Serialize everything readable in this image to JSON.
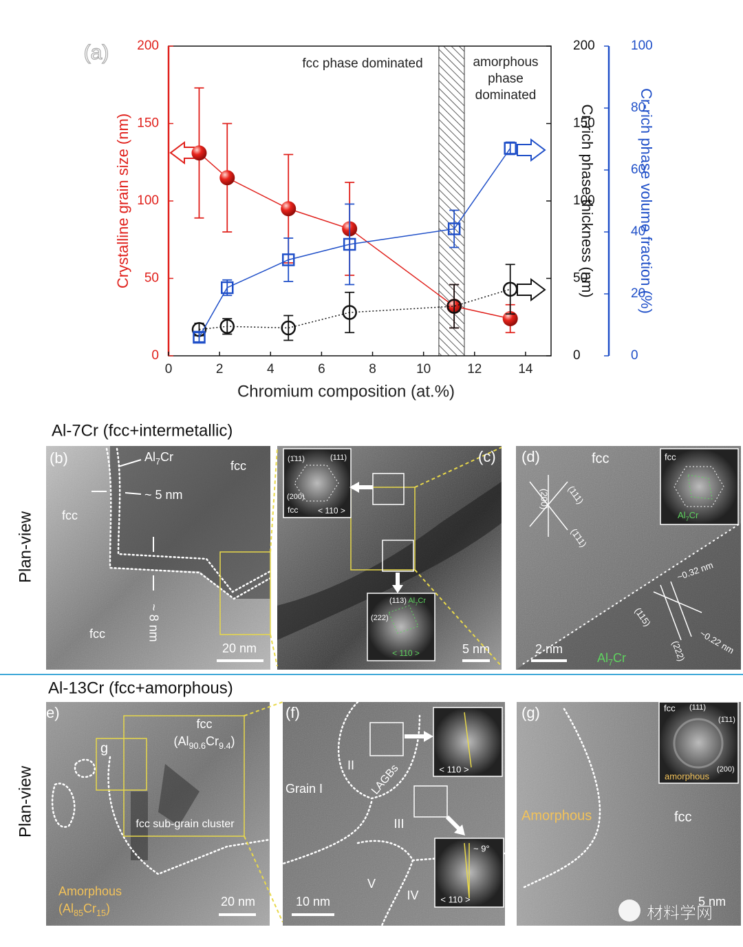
{
  "chart_data": {
    "type": "errorbar_line",
    "panel_label": "(a)",
    "x_label": "Chromium composition (at.%)",
    "y_label": "Crystalline grain size (nm)",
    "y2_label": "Cr-rich phase thickness (nm)",
    "y3_label": "Cr-rich phase volume fraction (%)",
    "y_color": "#e0201b",
    "y2_color": "#111111",
    "y3_color": "#1f4fc8",
    "xlim": [
      0,
      15
    ],
    "xticks": [
      0,
      2,
      4,
      6,
      8,
      10,
      12,
      14
    ],
    "ylim": [
      0,
      200
    ],
    "yticks": [
      0,
      50,
      100,
      150,
      200
    ],
    "y2lim": [
      0,
      200
    ],
    "y2ticks": [
      0,
      50,
      100,
      150,
      200
    ],
    "y3lim": [
      0,
      100
    ],
    "y3ticks": [
      0,
      20,
      40,
      60,
      80,
      100
    ],
    "shaded_region": [
      10.6,
      11.6
    ],
    "annotation_left": "fcc phase dominated",
    "annotation_right": [
      "amorphous",
      "phase",
      "dominated"
    ],
    "series": [
      {
        "axis": "y",
        "color": "#e0201b",
        "marker": "sphere",
        "line_style": "solid",
        "x": [
          1.2,
          2.3,
          4.7,
          7.1,
          11.2,
          13.4
        ],
        "values": [
          131,
          115,
          95,
          82,
          32,
          24
        ],
        "errors": [
          42,
          35,
          35,
          30,
          14,
          9
        ]
      },
      {
        "axis": "y2",
        "color": "#111111",
        "marker": "open-circle",
        "line_style": "dotted",
        "x": [
          1.2,
          2.3,
          4.7,
          7.1,
          11.2,
          13.4
        ],
        "values": [
          17,
          19,
          18,
          28,
          32,
          43
        ],
        "errors": [
          4,
          5,
          8,
          13,
          14,
          16
        ]
      },
      {
        "axis": "y3",
        "color": "#1f4fc8",
        "marker": "open-square",
        "line_style": "solid",
        "x": [
          1.2,
          2.3,
          4.7,
          7.1,
          11.2,
          13.4
        ],
        "values": [
          6,
          22,
          31,
          36,
          41,
          67
        ],
        "errors": [
          1.5,
          2.5,
          7,
          13,
          6,
          2
        ]
      }
    ]
  },
  "figure": {
    "row1_title": "Al-7Cr (fcc+intermetallic)",
    "row1_side": "Plan-view",
    "row2_title": "Al-13Cr (fcc+amorphous)",
    "row2_side": "Plan-view",
    "b": {
      "label": "(b)",
      "phase_label": [
        "Al",
        "7",
        "Cr"
      ],
      "thickness_top": "~ 5 nm",
      "fcc_left": "fcc",
      "fcc_top": "fcc",
      "fcc_bottom": "fcc",
      "thickness_bottom": "~ 8 nm",
      "scale": "20 nm"
    },
    "c": {
      "label": "(c)",
      "inset_fcc": {
        "spot1": "(1̄11)",
        "spot2": "(111)",
        "spot3": "(200)",
        "phase": "fcc",
        "zone": "< 110 >"
      },
      "inset_al7cr": {
        "spot1": "(113)",
        "phase": [
          "Al",
          "7",
          "Cr"
        ],
        "spot2": "(222)",
        "zone": "< 110 >"
      },
      "scale": "5 nm"
    },
    "d": {
      "label": "(d)",
      "phase_top": "fcc",
      "plane1": "(200)",
      "plane2": "(111)",
      "plane3": "(1̄11)",
      "spacing1": "~0.32 nm",
      "plane4": "(115)",
      "plane5": "(222)",
      "spacing2": "~0.22 nm",
      "scale": "2 nm",
      "phase_bottom": [
        "Al",
        "7",
        "Cr"
      ],
      "inset_fcc": "fcc",
      "inset_al7cr": [
        "Al",
        "7",
        "Cr"
      ]
    },
    "e": {
      "label": "e)",
      "fcc": "fcc",
      "fcc_comp": [
        "(Al",
        "90.6",
        "Cr",
        "9.4",
        ")"
      ],
      "inset_mark": "g",
      "cluster": "fcc sub-grain cluster",
      "amorphous": "Amorphous",
      "amorphous_comp": [
        "(Al",
        "85",
        "Cr",
        "15",
        ")"
      ],
      "scale": "20 nm"
    },
    "f": {
      "label": "(f)",
      "grain1": "Grain I",
      "grain2": "II",
      "lagbs": "LAGBs",
      "grain3": "III",
      "grain5": "V",
      "grain4": "IV",
      "zone1": "< 110 >",
      "zone2": "< 110 >",
      "angle": "~ 9°",
      "scale": "10 nm"
    },
    "g": {
      "label": "(g)",
      "inset_fcc": "fcc",
      "spot1": "(111)",
      "spot2": "(1̄11)",
      "spot3": "(200)",
      "inset_amorphous": "amorphous",
      "amorphous": "Amorphous",
      "fcc": "fcc",
      "scale": "5 nm"
    },
    "watermark": "材料学网"
  }
}
